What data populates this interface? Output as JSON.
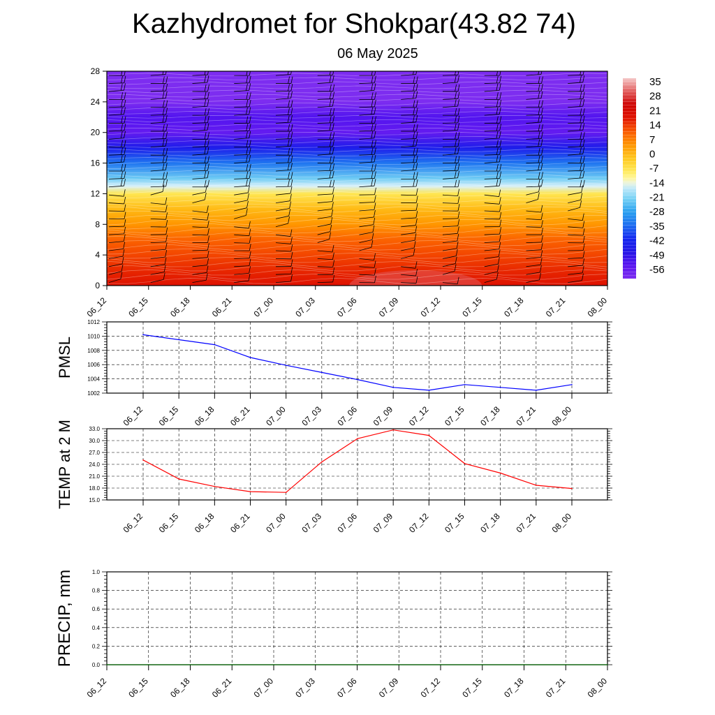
{
  "title": "Kazhydromet for Shokpar(43.82 74)",
  "subtitle": "06 May 2025",
  "time_labels": [
    "06_12",
    "06_15",
    "06_18",
    "06_21",
    "07_00",
    "07_03",
    "07_06",
    "07_09",
    "07_12",
    "07_15",
    "07_18",
    "07_21",
    "08_00"
  ],
  "chart_data": [
    {
      "type": "heatmap",
      "name": "temperature-height-crosssection",
      "x_labels": [
        "06_12",
        "06_15",
        "06_18",
        "06_21",
        "07_00",
        "07_03",
        "07_06",
        "07_09",
        "07_12",
        "07_15",
        "07_18",
        "07_21",
        "08_00"
      ],
      "y_ticks": [
        0,
        4,
        8,
        12,
        16,
        20,
        24,
        28
      ],
      "ylim": [
        0,
        28
      ],
      "colorbar_labels": [
        "35",
        "28",
        "21",
        "14",
        "7",
        "0",
        "-7",
        "-14",
        "-21",
        "-28",
        "-35",
        "-42",
        "-49",
        "-56"
      ],
      "colorbar_range": [
        -63,
        42
      ],
      "temperature_profile": [
        {
          "height": 0,
          "temp": 22
        },
        {
          "height": 2,
          "temp": 19
        },
        {
          "height": 4,
          "temp": 16
        },
        {
          "height": 6,
          "temp": 13
        },
        {
          "height": 8,
          "temp": 7
        },
        {
          "height": 10,
          "temp": 2
        },
        {
          "height": 12,
          "temp": -6
        },
        {
          "height": 13,
          "temp": -14
        },
        {
          "height": 14,
          "temp": -22
        },
        {
          "height": 16,
          "temp": -34
        },
        {
          "height": 18,
          "temp": -46
        },
        {
          "height": 20,
          "temp": -58
        },
        {
          "height": 22,
          "temp": -55
        },
        {
          "height": 24,
          "temp": -63
        },
        {
          "height": 28,
          "temp": -63
        }
      ],
      "wind_barbs": true,
      "colors": {
        "hot": "#d00000",
        "warm": "#ff8000",
        "neutral": "#fffbb0",
        "cool": "#38b0f0",
        "cold": "#0a10e0",
        "coldest": "#7a2cf0"
      }
    },
    {
      "type": "line",
      "ylabel": "PMSL",
      "categories": [
        "06_12",
        "06_15",
        "06_18",
        "06_21",
        "07_00",
        "07_03",
        "07_06",
        "07_09",
        "07_12",
        "07_15",
        "07_18",
        "07_21",
        "08_00"
      ],
      "values": [
        1010.2,
        1009.5,
        1008.8,
        1007.0,
        1005.9,
        1004.9,
        1003.9,
        1002.8,
        1002.4,
        1003.2,
        1002.8,
        1002.4,
        1003.2
      ],
      "ylim": [
        1002,
        1012
      ],
      "y_ticks": [
        "1002",
        "1004",
        "1006",
        "1008",
        "1010",
        "1012"
      ],
      "color": "#0000ff",
      "grid": true
    },
    {
      "type": "line",
      "ylabel": "TEMP at 2 M",
      "categories": [
        "06_12",
        "06_15",
        "06_18",
        "06_21",
        "07_00",
        "07_03",
        "07_06",
        "07_09",
        "07_12",
        "07_15",
        "07_18",
        "07_21",
        "08_00"
      ],
      "values": [
        25.1,
        20.3,
        18.4,
        17.1,
        16.9,
        24.6,
        30.5,
        32.7,
        31.3,
        24.2,
        21.8,
        18.7,
        17.9
      ],
      "ylim": [
        15,
        33
      ],
      "y_ticks": [
        "15.0",
        "18.0",
        "21.0",
        "24.0",
        "27.0",
        "30.0",
        "33.0"
      ],
      "color": "#ff0000",
      "grid": true
    },
    {
      "type": "line",
      "ylabel": "PRECIP, mm",
      "categories": [
        "06_12",
        "06_15",
        "06_18",
        "06_21",
        "07_00",
        "07_03",
        "07_06",
        "07_09",
        "07_12",
        "07_15",
        "07_18",
        "07_21",
        "08_00"
      ],
      "values": [
        0,
        0,
        0,
        0,
        0,
        0,
        0,
        0,
        0,
        0,
        0,
        0,
        0
      ],
      "ylim": [
        0,
        1
      ],
      "y_ticks": [
        "0.0",
        "0.2",
        "0.4",
        "0.6",
        "0.8",
        "1.0"
      ],
      "color": "#006400",
      "grid": true
    }
  ]
}
